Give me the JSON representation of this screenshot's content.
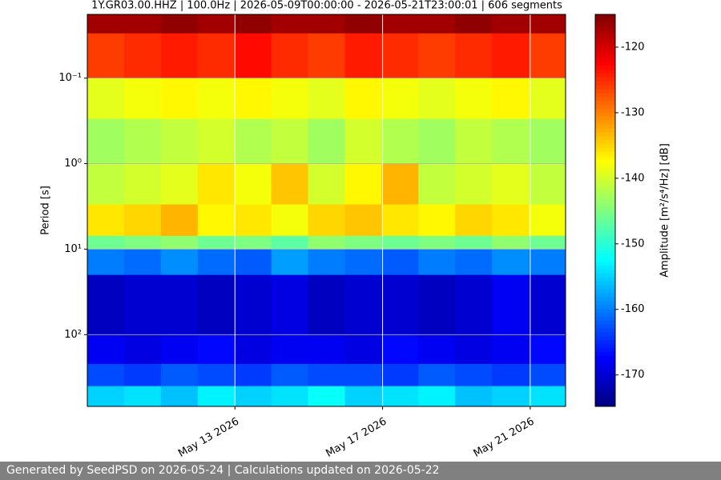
{
  "chart_data": {
    "type": "heatmap",
    "title": "1Y.GR03.00.HHZ | 100.0Hz | 2026-05-09T00:00:00 - 2026-05-21T23:00:01 | 606 segments",
    "ylabel": "Period [s]",
    "colorbar_label": "Amplitude [m²/s⁴/Hz] [dB]",
    "xlim": [
      "2026-05-09T00:00:00",
      "2026-05-21T23:00:01"
    ],
    "xticks": [
      {
        "value": "2026-05-13T00:00:00",
        "label": "May 13 2026"
      },
      {
        "value": "2026-05-17T00:00:00",
        "label": "May 17 2026"
      },
      {
        "value": "2026-05-21T00:00:00",
        "label": "May 21 2026"
      }
    ],
    "ylim": [
      0.018,
      690
    ],
    "yscale": "log",
    "yinvert": true,
    "yticks": [
      {
        "value": 0.1,
        "label": "10⁻¹"
      },
      {
        "value": 1,
        "label": "10⁰"
      },
      {
        "value": 10,
        "label": "10¹"
      },
      {
        "value": 100,
        "label": "10²"
      }
    ],
    "grid": true,
    "colormap": "jet",
    "clim": [
      -174.8,
      -115
    ],
    "cticks": [
      -120,
      -130,
      -140,
      -150,
      -160,
      -170
    ],
    "y_edges": [
      0.018,
      0.03,
      0.1,
      0.3,
      1,
      3,
      7,
      10,
      20,
      100,
      220,
      400,
      690
    ],
    "z": [
      [
        -117,
        -117,
        -116,
        -117,
        -116,
        -117,
        -117,
        -116,
        -117,
        -117,
        -116,
        -117,
        -117
      ],
      [
        -126,
        -125,
        -124,
        -125,
        -123,
        -125,
        -126,
        -124,
        -125,
        -126,
        -125,
        -124,
        -126
      ],
      [
        -139,
        -138,
        -137,
        -138,
        -137,
        -138,
        -139,
        -137,
        -138,
        -139,
        -138,
        -137,
        -139
      ],
      [
        -143,
        -142,
        -141,
        -140,
        -142,
        -141,
        -143,
        -140,
        -142,
        -143,
        -141,
        -142,
        -143
      ],
      [
        -141,
        -140,
        -139,
        -136,
        -138,
        -134,
        -140,
        -137,
        -133,
        -141,
        -140,
        -139,
        -141
      ],
      [
        -136,
        -135,
        -133,
        -137,
        -136,
        -138,
        -135,
        -134,
        -136,
        -137,
        -135,
        -136,
        -138
      ],
      [
        -146,
        -145,
        -144,
        -146,
        -145,
        -147,
        -144,
        -145,
        -146,
        -145,
        -146,
        -144,
        -146
      ],
      [
        -160,
        -161,
        -159,
        -161,
        -162,
        -158,
        -160,
        -161,
        -162,
        -160,
        -161,
        -159,
        -160
      ],
      [
        -171,
        -170,
        -170,
        -171,
        -170,
        -169,
        -171,
        -170,
        -170,
        -171,
        -170,
        -168,
        -170
      ],
      [
        -168,
        -169,
        -168,
        -167,
        -169,
        -168,
        -168,
        -169,
        -167,
        -168,
        -169,
        -168,
        -167
      ],
      [
        -163,
        -164,
        -162,
        -163,
        -164,
        -162,
        -163,
        -163,
        -164,
        -162,
        -163,
        -164,
        -163
      ],
      [
        -155,
        -154,
        -156,
        -153,
        -155,
        -154,
        -152,
        -155,
        -154,
        -153,
        -156,
        -155,
        -154
      ]
    ]
  },
  "footer": "Generated by SeedPSD on 2026-05-24 | Calculations updated on 2026-05-22"
}
